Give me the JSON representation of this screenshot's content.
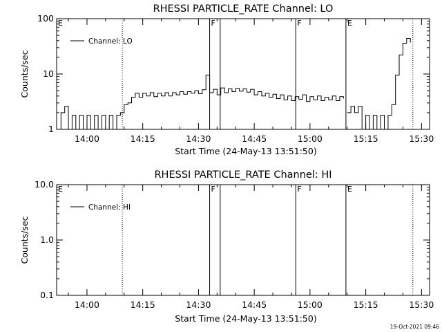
{
  "chart_data": [
    {
      "type": "line",
      "title": "RHESSI PARTICLE_RATE Channel: LO",
      "xlabel": "Start Time (24-May-13 13:51:50)",
      "ylabel": "Counts/sec",
      "yscale": "log",
      "ylim": [
        1,
        100
      ],
      "yticks": [
        1,
        10,
        100
      ],
      "ytick_labels": [
        "1",
        "10",
        "100"
      ],
      "xlim": [
        "13:51:50",
        "15:32:10"
      ],
      "xticks": [
        "14:00",
        "14:15",
        "14:30",
        "14:45",
        "15:00",
        "15:15",
        "15:30"
      ],
      "legend": {
        "position": "top-left",
        "entries": [
          "Channel: LO"
        ]
      },
      "grid": false,
      "markers": [
        {
          "label": "E",
          "time": "13:51:50",
          "style": "none"
        },
        {
          "label": "",
          "time": "14:09:30",
          "style": "dotted"
        },
        {
          "label": "F",
          "time": "14:33:00",
          "style": "solid"
        },
        {
          "label": "",
          "time": "14:35:50",
          "style": "solid"
        },
        {
          "label": "F",
          "time": "14:56:10",
          "style": "solid"
        },
        {
          "label": "E",
          "time": "15:09:40",
          "style": "solid"
        },
        {
          "label": "",
          "time": "15:27:40",
          "style": "dotted"
        }
      ],
      "series": [
        {
          "name": "Channel: LO",
          "segments": [
            {
              "x": [
                "13:52:00",
                "13:53:00",
                "13:54:00",
                "13:55:00",
                "13:56:00",
                "13:57:00",
                "13:58:00",
                "13:59:00",
                "14:00:00",
                "14:01:00",
                "14:02:00",
                "14:03:00",
                "14:04:00",
                "14:05:00",
                "14:06:00",
                "14:07:00",
                "14:08:00",
                "14:09:00",
                "14:10:00",
                "14:11:00",
                "14:12:00",
                "14:13:00",
                "14:14:00",
                "14:15:00",
                "14:16:00",
                "14:17:00",
                "14:18:00",
                "14:19:00",
                "14:20:00",
                "14:21:00",
                "14:22:00",
                "14:23:00",
                "14:24:00",
                "14:25:00",
                "14:26:00",
                "14:27:00",
                "14:28:00",
                "14:29:00",
                "14:30:00",
                "14:31:00",
                "14:32:00",
                "14:33:00",
                "14:34:00",
                "14:35:00",
                "14:36:00",
                "14:37:00",
                "14:38:00",
                "14:39:00",
                "14:40:00",
                "14:41:00",
                "14:42:00",
                "14:43:00",
                "14:44:00",
                "14:45:00",
                "14:46:00",
                "14:47:00",
                "14:48:00",
                "14:49:00",
                "14:50:00",
                "14:51:00",
                "14:52:00",
                "14:53:00",
                "14:54:00",
                "14:55:00",
                "14:56:00",
                "14:57:00",
                "14:58:00",
                "14:59:00",
                "15:00:00",
                "15:01:00",
                "15:02:00",
                "15:03:00",
                "15:04:00",
                "15:05:00",
                "15:06:00",
                "15:07:00",
                "15:08:00",
                "15:09:00"
              ],
              "y": [
                1.0,
                2.0,
                2.6,
                1.0,
                1.8,
                1.0,
                1.8,
                1.0,
                1.8,
                1.0,
                1.8,
                1.0,
                1.8,
                1.0,
                1.8,
                1.0,
                1.8,
                2.0,
                2.8,
                3.0,
                3.8,
                4.5,
                3.8,
                4.5,
                4.0,
                4.6,
                3.9,
                4.5,
                4.0,
                4.6,
                4.0,
                4.6,
                4.2,
                4.8,
                4.3,
                4.8,
                4.5,
                5.0,
                4.4,
                5.2,
                9.5,
                4.6,
                5.3,
                4.2,
                5.6,
                4.6,
                5.4,
                4.8,
                5.5,
                4.9,
                5.4,
                4.7,
                5.3,
                4.2,
                4.8,
                4.0,
                4.5,
                3.8,
                4.3,
                3.6,
                4.2,
                3.4,
                4.0,
                3.3,
                3.9,
                3.5,
                4.2,
                3.2,
                3.9,
                3.4,
                4.0,
                3.3,
                3.8,
                3.4,
                4.0,
                3.3,
                3.9,
                3.6
              ]
            },
            {
              "x": [
                "15:10:00",
                "15:11:00",
                "15:12:00",
                "15:13:00",
                "15:14:00",
                "15:15:00",
                "15:16:00",
                "15:17:00",
                "15:18:00",
                "15:19:00",
                "15:20:00",
                "15:21:00",
                "15:22:00",
                "15:23:00",
                "15:24:00",
                "15:25:00",
                "15:26:00",
                "15:27:00"
              ],
              "y": [
                2.0,
                2.6,
                2.0,
                2.6,
                1.0,
                1.8,
                1.0,
                1.8,
                1.0,
                1.8,
                1.0,
                1.8,
                2.8,
                9.5,
                22.0,
                36.0,
                44.0,
                37.0
              ]
            }
          ]
        }
      ]
    },
    {
      "type": "line",
      "title": "RHESSI PARTICLE_RATE Channel: HI",
      "xlabel": "Start Time (24-May-13 13:51:50)",
      "ylabel": "Counts/sec",
      "yscale": "log",
      "ylim": [
        0.1,
        10
      ],
      "yticks": [
        0.1,
        1,
        10
      ],
      "ytick_labels": [
        "0.1",
        "1.0",
        "10.0"
      ],
      "xlim": [
        "13:51:50",
        "15:32:10"
      ],
      "xticks": [
        "14:00",
        "14:15",
        "14:30",
        "14:45",
        "15:00",
        "15:15",
        "15:30"
      ],
      "legend": {
        "position": "top-left",
        "entries": [
          "Channel: HI"
        ]
      },
      "grid": false,
      "markers": [
        {
          "label": "E",
          "time": "13:51:50",
          "style": "none"
        },
        {
          "label": "",
          "time": "14:09:30",
          "style": "dotted"
        },
        {
          "label": "F",
          "time": "14:33:00",
          "style": "solid"
        },
        {
          "label": "",
          "time": "14:35:50",
          "style": "solid"
        },
        {
          "label": "F",
          "time": "14:56:10",
          "style": "solid"
        },
        {
          "label": "E",
          "time": "15:09:40",
          "style": "solid"
        },
        {
          "label": "",
          "time": "15:27:40",
          "style": "dotted"
        }
      ],
      "series": [
        {
          "name": "Channel: HI",
          "segments": []
        }
      ]
    }
  ],
  "footer": {
    "timestamp": "19-Oct-2021 09:46"
  }
}
